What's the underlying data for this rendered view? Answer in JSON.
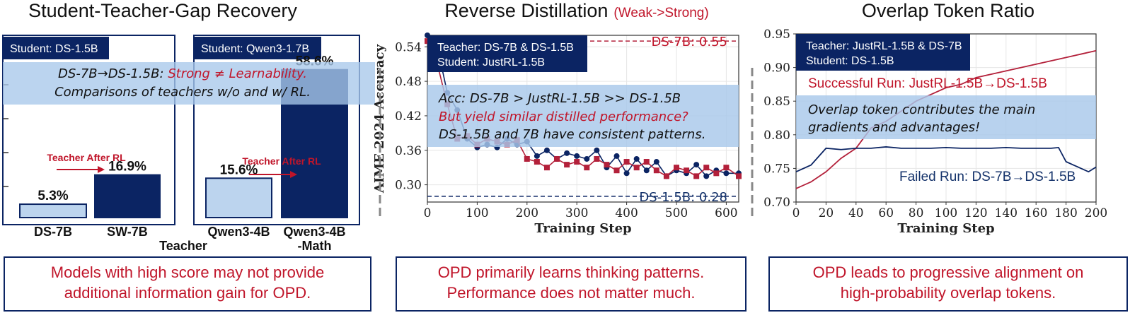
{
  "colors": {
    "navy": "#0b2463",
    "red": "#b3203a",
    "light_blue": "#bcd4ee",
    "overlay_blue": "#a8c8ea"
  },
  "panel1": {
    "title": "Student-Teacher-Gap Recovery",
    "badge_left": "Student: DS-1.5B",
    "badge_right": "Student: Qwen3-1.7B",
    "overlay_line1_a": "DS-7B→DS-1.5B: ",
    "overlay_line1_b": "Strong ≠ Learnability.",
    "overlay_line2": "Comparisons of teachers w/o and w/ RL.",
    "arrow_label": "Teacher After RL",
    "xlabel": "Teacher",
    "caption_line1": "Models with high score may not provide",
    "caption_line2": "additional information gain for OPD."
  },
  "panel2": {
    "title": "Reverse Distillation",
    "title_tag": "(Weak->Strong)",
    "badge_line1": "Teacher: DS-7B & DS-1.5B",
    "badge_line2": "Student: JustRL-1.5B",
    "overlay_line1": "Acc: DS-7B > JustRL-1.5B >> DS-1.5B",
    "overlay_line2": "But yield similar distilled performance?",
    "overlay_line3": "DS-1.5B and 7B have consistent patterns.",
    "ref_high": "DS-7B: 0.55",
    "ref_low": "DS-1.5B: 0.28",
    "caption_line1": "OPD primarily learns thinking patterns.",
    "caption_line2": "Performance does not matter much."
  },
  "panel3": {
    "title": "Overlap Token Ratio",
    "badge_line1": "Teacher: JustRL-1.5B & DS-7B",
    "badge_line2": "Student: DS-1.5B",
    "overlay_line1": "Overlap token contributes the main",
    "overlay_line2": "gradients and advantages!",
    "anno_success": "Successful Run: JustRL-1.5B→DS-1.5B",
    "anno_failed": "Failed Run: DS-7B→DS-1.5B",
    "caption_line1": "OPD leads to progressive alignment on",
    "caption_line2": "high-probability overlap tokens."
  },
  "chart_data": [
    {
      "type": "bar",
      "title": "Student-Teacher-Gap Recovery",
      "xlabel": "Teacher",
      "groups": [
        {
          "student": "DS-1.5B",
          "categories": [
            "DS-7B",
            "SW-7B"
          ],
          "values": [
            5.3,
            16.9
          ],
          "labels": [
            "5.3%",
            "16.9%"
          ]
        },
        {
          "student": "Qwen3-1.7B",
          "categories": [
            "Qwen3-4B",
            "Qwen3-4B\n-Math"
          ],
          "values": [
            15.6,
            58.6
          ],
          "labels": [
            "15.6%",
            "58.6%"
          ]
        }
      ],
      "ylim": [
        0,
        70
      ]
    },
    {
      "type": "line",
      "title": "Reverse Distillation",
      "xlabel": "Training Step",
      "ylabel": "AIME 2024 Accuracy",
      "xlim": [
        0,
        625
      ],
      "ylim": [
        0.27,
        0.56
      ],
      "xticks": [
        0,
        100,
        200,
        300,
        400,
        500,
        600
      ],
      "yticks": [
        0.3,
        0.36,
        0.42,
        0.48,
        0.54
      ],
      "reference_lines": [
        {
          "label": "DS-7B: 0.55",
          "y": 0.55,
          "color": "#b3203a"
        },
        {
          "label": "DS-1.5B: 0.28",
          "y": 0.28,
          "color": "#0b2463"
        }
      ],
      "series": [
        {
          "color": "#0b2463",
          "x": [
            0,
            20,
            40,
            60,
            80,
            100,
            120,
            140,
            160,
            180,
            200,
            220,
            240,
            260,
            280,
            300,
            320,
            340,
            360,
            380,
            400,
            420,
            440,
            460,
            480,
            500,
            520,
            540,
            560,
            580,
            600,
            625
          ],
          "y": [
            0.56,
            0.54,
            0.46,
            0.43,
            0.38,
            0.365,
            0.37,
            0.365,
            0.38,
            0.37,
            0.375,
            0.35,
            0.36,
            0.345,
            0.355,
            0.35,
            0.345,
            0.36,
            0.33,
            0.35,
            0.32,
            0.345,
            0.325,
            0.34,
            0.315,
            0.325,
            0.32,
            0.335,
            0.315,
            0.325,
            0.32,
            0.32
          ]
        },
        {
          "color": "#b3203a",
          "x": [
            0,
            20,
            40,
            60,
            80,
            100,
            120,
            140,
            160,
            180,
            200,
            220,
            240,
            260,
            280,
            300,
            320,
            340,
            360,
            380,
            400,
            420,
            440,
            460,
            480,
            500,
            520,
            540,
            560,
            580,
            600,
            625
          ],
          "y": [
            0.55,
            0.51,
            0.44,
            0.38,
            0.385,
            0.37,
            0.38,
            0.375,
            0.37,
            0.378,
            0.345,
            0.34,
            0.33,
            0.345,
            0.335,
            0.34,
            0.33,
            0.345,
            0.335,
            0.325,
            0.34,
            0.33,
            0.34,
            0.325,
            0.315,
            0.33,
            0.325,
            0.315,
            0.33,
            0.32,
            0.33,
            0.315
          ]
        }
      ]
    },
    {
      "type": "line",
      "title": "Overlap Token Ratio",
      "xlabel": "Training Step",
      "xlim": [
        0,
        200
      ],
      "ylim": [
        0.7,
        0.95
      ],
      "xticks": [
        0,
        20,
        40,
        60,
        80,
        100,
        120,
        140,
        160,
        180,
        200
      ],
      "yticks": [
        0.7,
        0.75,
        0.8,
        0.85,
        0.9,
        0.95
      ],
      "series": [
        {
          "name": "Successful Run: JustRL-1.5B→DS-1.5B",
          "color": "#b3203a",
          "x": [
            0,
            10,
            20,
            30,
            40,
            50,
            60,
            70,
            80,
            90,
            100,
            110,
            120,
            130,
            140,
            150,
            160,
            170,
            180,
            190,
            200
          ],
          "y": [
            0.72,
            0.73,
            0.745,
            0.765,
            0.78,
            0.81,
            0.82,
            0.835,
            0.85,
            0.86,
            0.87,
            0.875,
            0.885,
            0.89,
            0.895,
            0.9,
            0.905,
            0.91,
            0.915,
            0.92,
            0.925
          ]
        },
        {
          "name": "Failed Run: DS-7B→DS-1.5B",
          "color": "#0b2463",
          "x": [
            0,
            10,
            20,
            30,
            40,
            50,
            60,
            70,
            80,
            90,
            100,
            110,
            120,
            130,
            140,
            150,
            160,
            170,
            175,
            180,
            185,
            190,
            195,
            200
          ],
          "y": [
            0.745,
            0.755,
            0.78,
            0.778,
            0.78,
            0.78,
            0.782,
            0.78,
            0.78,
            0.78,
            0.781,
            0.78,
            0.78,
            0.78,
            0.781,
            0.78,
            0.78,
            0.78,
            0.781,
            0.76,
            0.755,
            0.75,
            0.745,
            0.752
          ]
        }
      ]
    }
  ]
}
